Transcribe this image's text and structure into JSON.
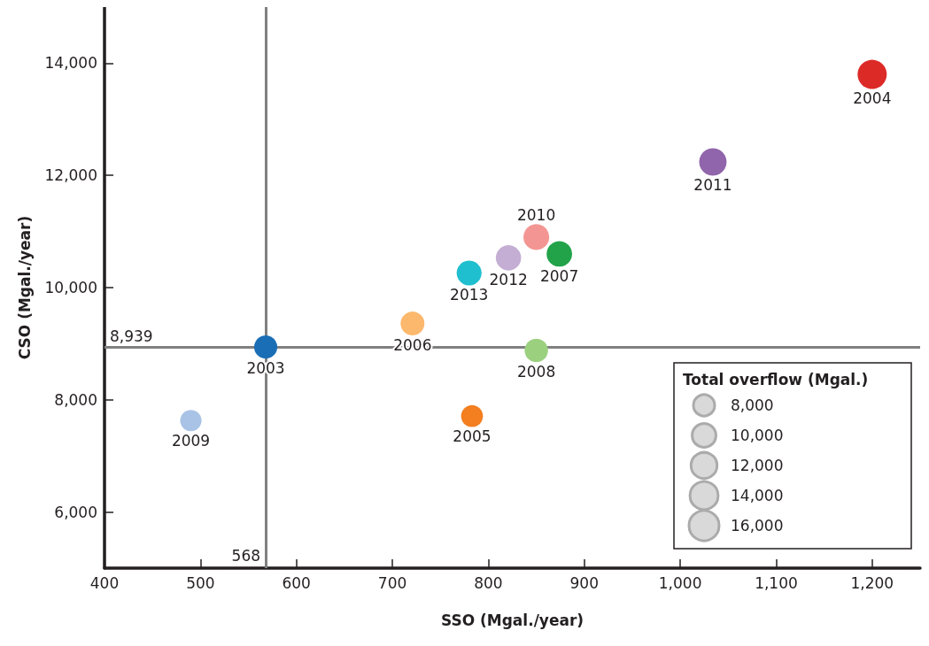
{
  "chart_data": {
    "type": "bubble",
    "xlabel": "SSO (Mgal./year)",
    "ylabel": "CSO (Mgal./year)",
    "legend_title": "Total overflow (Mgal.)",
    "xlim": [
      400,
      1250
    ],
    "ylim": [
      5000,
      15000
    ],
    "xticks": [
      400,
      500,
      600,
      700,
      800,
      900,
      {
        "value": 1000,
        "label": "1,000"
      },
      {
        "value": 1100,
        "label": "1,100"
      },
      {
        "value": 1200,
        "label": "1,200"
      }
    ],
    "yticks": [
      {
        "value": 6000,
        "label": "6,000"
      },
      {
        "value": 8000,
        "label": "8,000"
      },
      {
        "value": 10000,
        "label": "10,000"
      },
      {
        "value": 12000,
        "label": "12,000"
      },
      {
        "value": 14000,
        "label": "14,000"
      }
    ],
    "size_legend": [
      {
        "value": 8000,
        "label": "8,000"
      },
      {
        "value": 10000,
        "label": "10,000"
      },
      {
        "value": 12000,
        "label": "12,000"
      },
      {
        "value": 14000,
        "label": "14,000"
      },
      {
        "value": 16000,
        "label": "16,000"
      }
    ],
    "grid": false,
    "ref_lines": [
      {
        "axis": "x",
        "value": 568,
        "label": "568",
        "color": "#808080"
      },
      {
        "axis": "y",
        "value": 8939,
        "label": "8,939",
        "color": "#808080"
      }
    ],
    "series": [
      {
        "name": "2003",
        "color": "#1a6eb5",
        "x": [
          568
        ],
        "values": [
          8940
        ],
        "sizes": [
          9500
        ]
      },
      {
        "name": "2004",
        "color": "#dc2a27",
        "x": [
          1200
        ],
        "values": [
          13800
        ],
        "sizes": [
          15000
        ]
      },
      {
        "name": "2005",
        "color": "#f47f20",
        "x": [
          783
        ],
        "values": [
          7710
        ],
        "sizes": [
          8500
        ]
      },
      {
        "name": "2006",
        "color": "#fcb86d",
        "x": [
          721
        ],
        "values": [
          9360
        ],
        "sizes": [
          10100
        ]
      },
      {
        "name": "2007",
        "color": "#22a34a",
        "x": [
          874
        ],
        "values": [
          10600
        ],
        "sizes": [
          11500
        ]
      },
      {
        "name": "2008",
        "color": "#9bd07f",
        "x": [
          850
        ],
        "values": [
          8880
        ],
        "sizes": [
          9700
        ]
      },
      {
        "name": "2009",
        "color": "#a9c3e6",
        "x": [
          490
        ],
        "values": [
          7630
        ],
        "sizes": [
          8100
        ]
      },
      {
        "name": "2010",
        "color": "#f39693",
        "x": [
          850
        ],
        "values": [
          10900
        ],
        "sizes": [
          11800
        ]
      },
      {
        "name": "2011",
        "color": "#9065ab",
        "x": [
          1034
        ],
        "values": [
          12240
        ],
        "sizes": [
          13300
        ]
      },
      {
        "name": "2012",
        "color": "#c4aed4",
        "x": [
          821
        ],
        "values": [
          10530
        ],
        "sizes": [
          11300
        ]
      },
      {
        "name": "2013",
        "color": "#1fbfcf",
        "x": [
          780
        ],
        "values": [
          10260
        ],
        "sizes": [
          11000
        ]
      }
    ]
  }
}
